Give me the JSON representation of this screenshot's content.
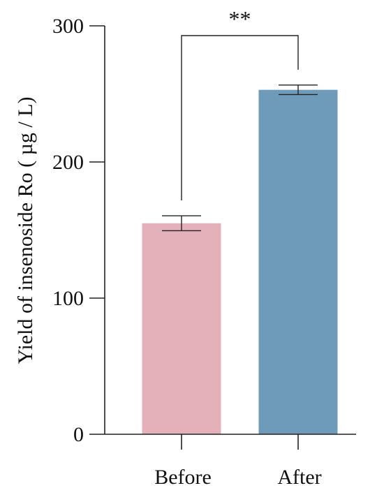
{
  "chart_data": {
    "type": "bar",
    "categories": [
      "Before",
      "After"
    ],
    "values": [
      155,
      253
    ],
    "errors": [
      5.5,
      3.5
    ],
    "colors": [
      "#e4b1ba",
      "#6f9bbb"
    ],
    "xlabel": "",
    "ylabel": "Yield of insenoside Ro ( µg / L)",
    "ylim": [
      0,
      300
    ],
    "yticks": [
      0,
      100,
      200,
      300
    ],
    "significance": {
      "between": [
        "Before",
        "After"
      ],
      "label": "**"
    },
    "grid": false,
    "legend": "none"
  }
}
